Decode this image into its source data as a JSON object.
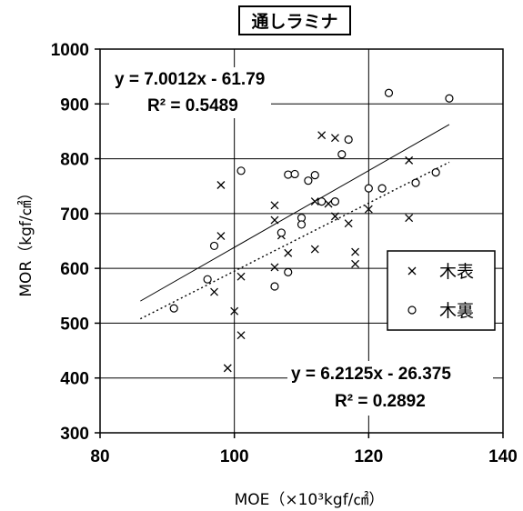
{
  "chart_data": {
    "type": "scatter",
    "title": "通しラミナ",
    "xlabel": "MOE（×10³kgf/㎠）",
    "ylabel": "MOR（kgf/㎠）",
    "xlim": [
      80,
      140
    ],
    "ylim": [
      300,
      1000
    ],
    "x_ticks": [
      "80",
      "100",
      "120",
      "140"
    ],
    "y_ticks": [
      "300",
      "400",
      "500",
      "600",
      "700",
      "800",
      "900",
      "1000"
    ],
    "grid": true,
    "legend_position": "right",
    "series": [
      {
        "name": "木表",
        "marker": "x",
        "points": [
          [
            97,
            557
          ],
          [
            98,
            752
          ],
          [
            98,
            659
          ],
          [
            99,
            418
          ],
          [
            100,
            522
          ],
          [
            101,
            478
          ],
          [
            101,
            585
          ],
          [
            106,
            715
          ],
          [
            106,
            688
          ],
          [
            106,
            602
          ],
          [
            107,
            660
          ],
          [
            108,
            628
          ],
          [
            112,
            635
          ],
          [
            112,
            722
          ],
          [
            113,
            843
          ],
          [
            114,
            718
          ],
          [
            115,
            695
          ],
          [
            115,
            838
          ],
          [
            117,
            682
          ],
          [
            118,
            630
          ],
          [
            118,
            608
          ],
          [
            120,
            708
          ],
          [
            126,
            692
          ],
          [
            126,
            797
          ]
        ],
        "trendline": {
          "equation": "y = 7.0012x - 61.79",
          "r2": "R² = 0.5489",
          "slope": 7.0012,
          "intercept": -61.79,
          "x_range": [
            86,
            132
          ],
          "style": "solid"
        }
      },
      {
        "name": "木裏",
        "marker": "o",
        "points": [
          [
            91,
            527
          ],
          [
            96,
            580
          ],
          [
            97,
            641
          ],
          [
            101,
            778
          ],
          [
            106,
            567
          ],
          [
            107,
            665
          ],
          [
            108,
            593
          ],
          [
            108,
            771
          ],
          [
            109,
            772
          ],
          [
            110,
            692
          ],
          [
            110,
            680
          ],
          [
            111,
            760
          ],
          [
            112,
            770
          ],
          [
            113,
            722
          ],
          [
            115,
            722
          ],
          [
            116,
            808
          ],
          [
            117,
            835
          ],
          [
            120,
            746
          ],
          [
            122,
            746
          ],
          [
            123,
            920
          ],
          [
            127,
            756
          ],
          [
            130,
            775
          ],
          [
            132,
            910
          ]
        ],
        "trendline": {
          "equation": "y = 6.2125x - 26.375",
          "r2": "R² = 0.2892",
          "slope": 6.2125,
          "intercept": -26.375,
          "x_range": [
            86,
            132
          ],
          "style": "dotted"
        }
      }
    ]
  }
}
